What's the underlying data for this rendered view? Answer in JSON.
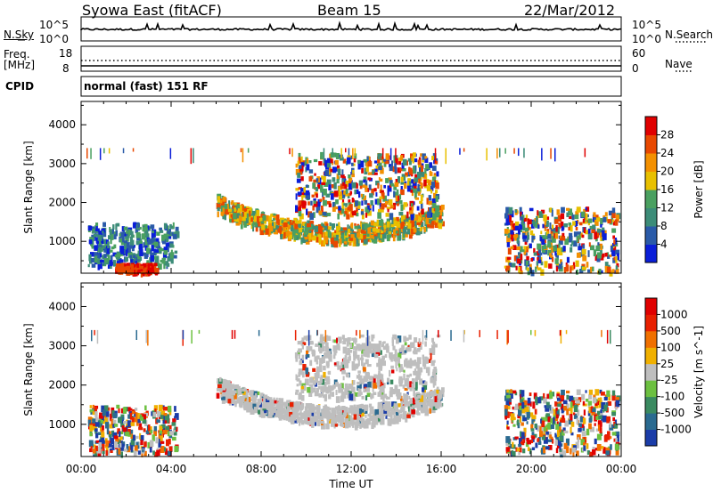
{
  "header": {
    "station": "Syowa East (fitACF)",
    "beam": "Beam 15",
    "date": "22/Mar/2012"
  },
  "status_panel": {
    "nsky_label": "N.Sky",
    "nsearch_label": "N.Search",
    "nsky_ticks": [
      "10^5",
      "10^0"
    ],
    "nsearch_ticks": [
      "10^5",
      "10^0"
    ],
    "freq_label": "Freq.",
    "freq_unit": "[MHz]",
    "freq_ticks": [
      "18",
      "8"
    ],
    "nave_ticks": [
      "60",
      "0"
    ],
    "nave_label": "Nave",
    "cpid_label": "CPID",
    "cpid_value": "normal (fast) 151 RF"
  },
  "chart_data": [
    {
      "type": "heatmap",
      "title": "",
      "xlabel": "Time UT",
      "ylabel": "Slant Range [km]",
      "x_ticks": [
        "00:00",
        "04:00",
        "08:00",
        "12:00",
        "16:00",
        "20:00",
        "00:00"
      ],
      "y_ticks": [
        1000,
        2000,
        3000,
        4000
      ],
      "ylim": [
        180,
        4600
      ],
      "xlim_hours": [
        0,
        24
      ],
      "colorbar": {
        "label": "Power [dB]",
        "ticks": [
          4,
          8,
          12,
          16,
          20,
          24,
          28
        ],
        "range": [
          0,
          32
        ],
        "colors": [
          "#0a1ed8",
          "#2a5aa8",
          "#3c8c78",
          "#4aa060",
          "#e8c000",
          "#f39000",
          "#e84800",
          "#e00000"
        ]
      },
      "regions": [
        {
          "name": "early-ionospheric",
          "t": [
            0.3,
            4.2
          ],
          "range_km": [
            400,
            1500
          ],
          "level": "low"
        },
        {
          "name": "early-ground-scatter",
          "t": [
            1.5,
            3.3
          ],
          "range_km": [
            250,
            450
          ],
          "level": "high"
        },
        {
          "name": "main-echo-band",
          "t": [
            6.0,
            16.0
          ],
          "range_km": [
            900,
            1900
          ],
          "level": "medium"
        },
        {
          "name": "upper-patch",
          "t": [
            9.5,
            15.8
          ],
          "range_km": [
            1700,
            3300
          ],
          "level": "mixed"
        },
        {
          "name": "evening-echoes",
          "t": [
            18.8,
            23.8
          ],
          "range_km": [
            250,
            1900
          ],
          "level": "mixed"
        }
      ]
    },
    {
      "type": "heatmap",
      "title": "",
      "xlabel": "Time UT",
      "ylabel": "Slant Range [km]",
      "x_ticks": [
        "00:00",
        "04:00",
        "08:00",
        "12:00",
        "16:00",
        "20:00",
        "00:00"
      ],
      "y_ticks": [
        1000,
        2000,
        3000,
        4000
      ],
      "ylim": [
        180,
        4600
      ],
      "xlim_hours": [
        0,
        24
      ],
      "colorbar": {
        "label": "Velocity [m s^-1]",
        "ticks": [
          1000,
          500,
          100,
          25,
          -25,
          -100,
          -500,
          -1000
        ],
        "colors": [
          "#1a3ca8",
          "#2a6a90",
          "#3a8a60",
          "#6cc040",
          "#bebebe",
          "#f0b000",
          "#f07000",
          "#e82000",
          "#e00000"
        ]
      },
      "regions": [
        {
          "name": "early-ionospheric",
          "t": [
            0.3,
            4.2
          ],
          "range_km": [
            300,
            1500
          ],
          "level": "mixed"
        },
        {
          "name": "ground-scatter-band",
          "t": [
            6.0,
            16.0
          ],
          "range_km": [
            900,
            1900
          ],
          "level": "zero"
        },
        {
          "name": "upper-patch",
          "t": [
            9.5,
            15.8
          ],
          "range_km": [
            1700,
            3300
          ],
          "level": "zero"
        },
        {
          "name": "evening-echoes",
          "t": [
            18.8,
            23.8
          ],
          "range_km": [
            300,
            1900
          ],
          "level": "mixed"
        }
      ]
    }
  ]
}
